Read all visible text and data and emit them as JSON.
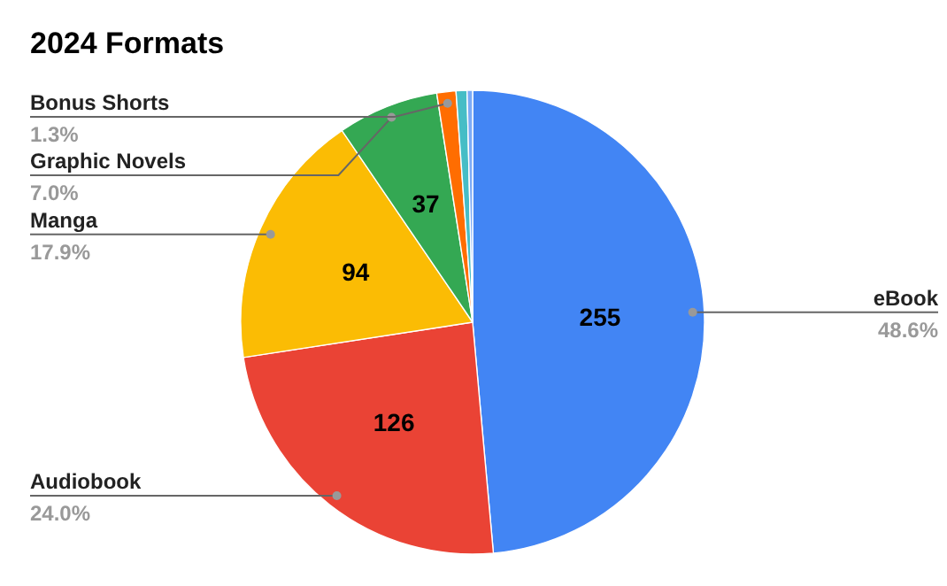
{
  "chart_data": {
    "type": "pie",
    "title": "2024 Formats",
    "categories": [
      "eBook",
      "Audiobook",
      "Manga",
      "Graphic Novels",
      "Bonus Shorts",
      null,
      null
    ],
    "values": [
      255,
      126,
      94,
      37,
      7,
      4,
      2
    ],
    "colors": [
      "#4285f4",
      "#ea4335",
      "#fbbc04",
      "#34a853",
      "#ff6d01",
      "#46bdc6",
      "#7baaf7"
    ],
    "value_labels": [
      "255",
      "126",
      "94",
      "37",
      null,
      null,
      null
    ],
    "annotations": [
      "48.6%",
      "24.0%",
      "17.9%",
      "7.0%",
      "1.3%"
    ]
  }
}
